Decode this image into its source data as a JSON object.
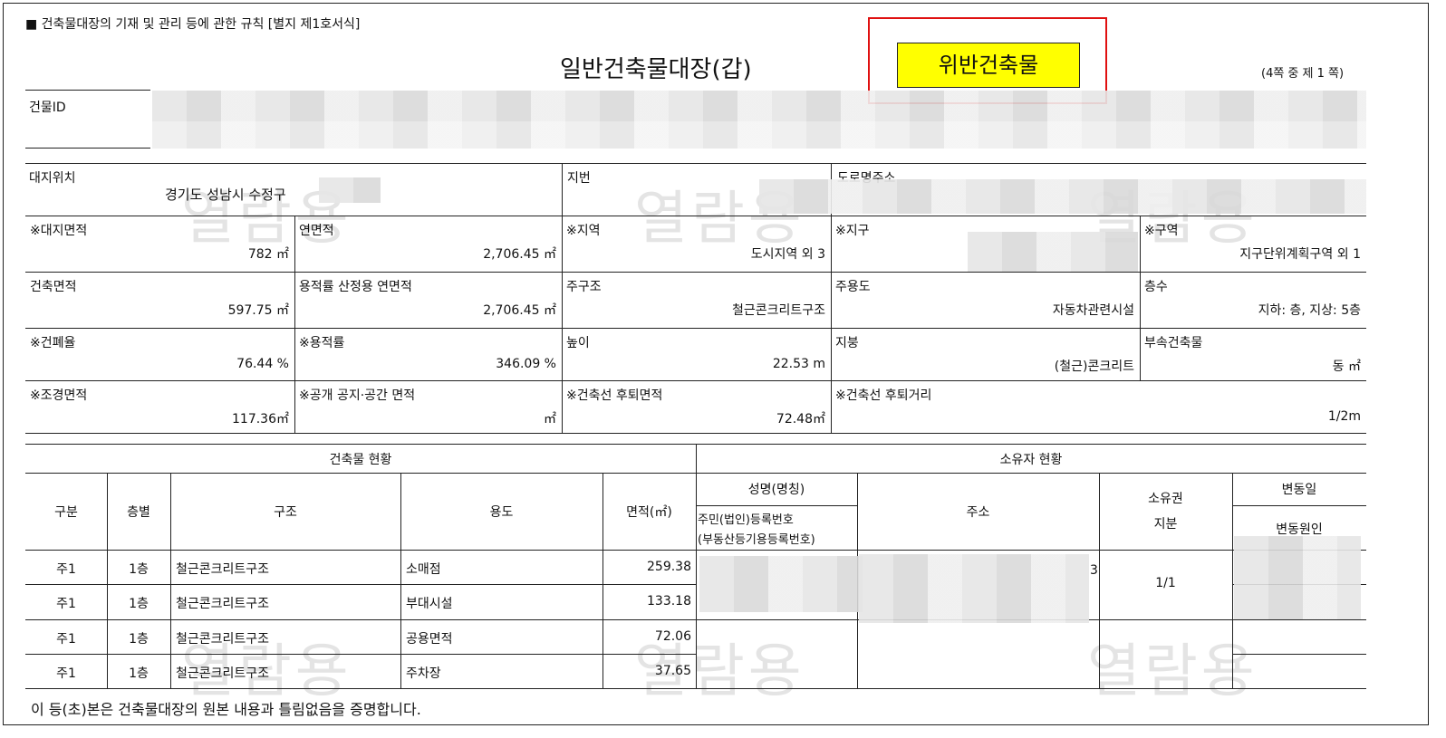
{
  "header": {
    "rule_text": "■ 건축물대장의 기재 및 관리 등에 관한 규칙 [별지 제1호서식]",
    "title": "일반건축물대장(갑)",
    "violation_badge": "위반건축물",
    "page_info": "(4쪽 중 제 1 쪽)",
    "badge_color": "#ffff00",
    "highlight_border_color": "#e01010"
  },
  "id_label": "건물ID",
  "watermark": "열람용",
  "fields": {
    "site_location": {
      "label": "대지위치",
      "value": "경기도 성남시 수정구"
    },
    "lot_number": {
      "label": "지번"
    },
    "road_address": {
      "label": "도로명주소"
    },
    "site_area": {
      "label": "※대지면적",
      "value": "782 ㎡"
    },
    "total_floor_area": {
      "label": "연면적",
      "value": "2,706.45 ㎡"
    },
    "zone": {
      "label": "※지역",
      "value": "도시지역 외 3"
    },
    "district": {
      "label": "※지구"
    },
    "area": {
      "label": "※구역",
      "value": "지구단위계획구역 외 1"
    },
    "building_area": {
      "label": "건축면적",
      "value": "597.75 ㎡"
    },
    "far_floor_area": {
      "label": "용적률 산정용 연면적",
      "value": "2,706.45 ㎡"
    },
    "main_structure": {
      "label": "주구조",
      "value": "철근콘크리트구조"
    },
    "main_use": {
      "label": "주용도",
      "value": "자동차관련시설"
    },
    "floors": {
      "label": "층수",
      "value": "지하: 층, 지상: 5층"
    },
    "coverage": {
      "label": "※건폐율",
      "value": "76.44 %"
    },
    "far": {
      "label": "※용적률",
      "value": "346.09 %"
    },
    "height": {
      "label": "높이",
      "value": "22.53 m"
    },
    "roof": {
      "label": "지붕",
      "value": "(철근)콘크리트"
    },
    "annex": {
      "label": "부속건축물",
      "value": "동 ㎡"
    },
    "landscape": {
      "label": "※조경면적",
      "value": "117.36㎡"
    },
    "open_space": {
      "label": "※공개 공지·공간 면적",
      "value": "㎡"
    },
    "setback_area": {
      "label": "※건축선 후퇴면적",
      "value": "72.48㎡"
    },
    "setback_dist": {
      "label": "※건축선 후퇴거리",
      "value": "1/2m"
    }
  },
  "building_status": {
    "title": "건축물 현황",
    "headers": [
      "구분",
      "층별",
      "구조",
      "용도",
      "면적(㎡)"
    ],
    "rows": [
      {
        "type": "주1",
        "floor": "1층",
        "structure": "철근콘크리트구조",
        "use": "소매점",
        "area": "259.38"
      },
      {
        "type": "주1",
        "floor": "1층",
        "structure": "철근콘크리트구조",
        "use": "부대시설",
        "area": "133.18"
      },
      {
        "type": "주1",
        "floor": "1층",
        "structure": "철근콘크리트구조",
        "use": "공용면적",
        "area": "72.06"
      },
      {
        "type": "주1",
        "floor": "1층",
        "structure": "철근콘크리트구조",
        "use": "주차장",
        "area": "37.65"
      }
    ]
  },
  "owner_status": {
    "title": "소유자 현황",
    "name_header": "성명(명칭)",
    "reg_header_1": "주민(법인)등록번호",
    "reg_header_2": "(부동산등기용등록번호)",
    "address_header": "주소",
    "share_header_1": "소유권",
    "share_header_2": "지분",
    "change_date_header": "변동일",
    "change_reason_header": "변동원인",
    "share_value": "1/1",
    "address_tail": "3"
  },
  "footer": "이 등(초)본은 건축물대장의 원본 내용과 틀림없음을 증명합니다."
}
